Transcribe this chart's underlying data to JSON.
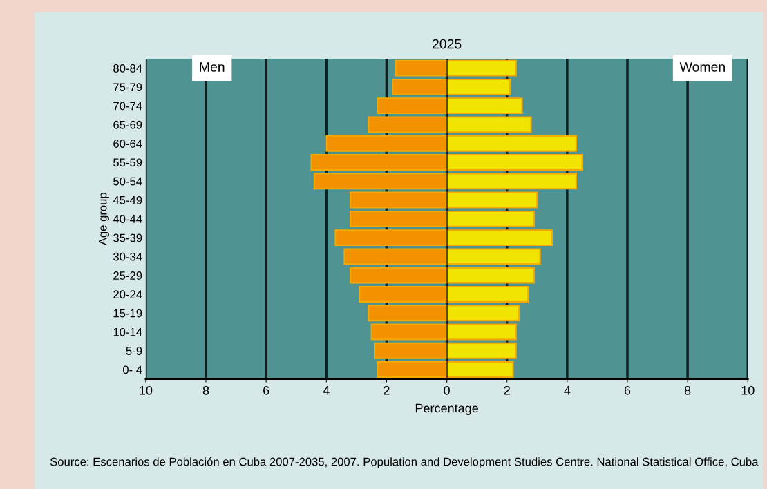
{
  "chart_data": [
    {
      "type": "bar",
      "orientation": "horizontal",
      "title": "2025",
      "ylabel": "Age group",
      "categories": [
        "80-84",
        "75-79",
        "70-74",
        "65-69",
        "60-64",
        "55-59",
        "50-54",
        "45-49",
        "40-44",
        "35-39",
        "30-34",
        "25-29",
        "20-24",
        "15-19",
        "10-14",
        "5-9",
        "0- 4"
      ],
      "series": [
        {
          "name": "Men",
          "color": "#f39200",
          "values": [
            1.7,
            1.8,
            2.3,
            2.6,
            4.0,
            4.5,
            4.4,
            3.2,
            3.2,
            3.7,
            3.4,
            3.2,
            2.9,
            2.6,
            2.5,
            2.4,
            2.3
          ]
        }
      ],
      "xlim": [
        10,
        0
      ],
      "xticks": [
        10,
        8,
        6,
        4,
        2,
        {
          "value": 0,
          "label": null
        }
      ],
      "grid": "x",
      "legend": false
    },
    {
      "type": "bar",
      "orientation": "horizontal",
      "xlabel": "Percentage",
      "series": [
        {
          "name": "Women",
          "color": "#f0e400",
          "values": [
            2.3,
            2.1,
            2.5,
            2.8,
            4.3,
            4.5,
            4.3,
            3.0,
            2.9,
            3.5,
            3.1,
            2.9,
            2.7,
            2.4,
            2.3,
            2.3,
            2.2
          ]
        }
      ],
      "xlim": [
        0,
        10
      ],
      "xticks": [
        0,
        2,
        4,
        6,
        8,
        10
      ],
      "tick_labels": "x",
      "grid": "x",
      "legend": false,
      "annotations": [
        "Source: Escenarios de Población en Cuba 2007-2035, 2007. Population and Development Studies Centre. National Statistical Office, Cuba"
      ]
    }
  ]
}
